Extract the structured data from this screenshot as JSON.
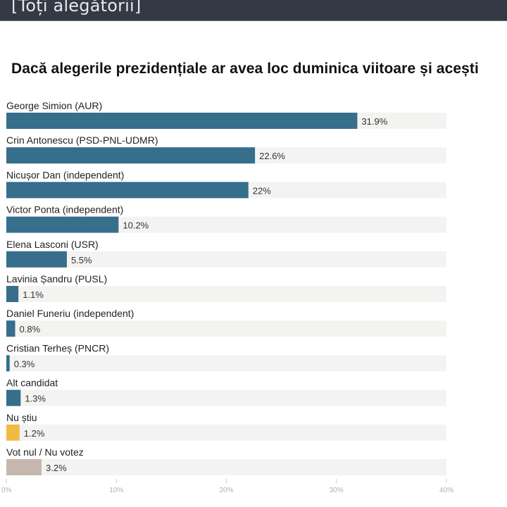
{
  "header": {
    "title": "[Toți alegătorii]"
  },
  "chart_data": {
    "type": "bar",
    "orientation": "horizontal",
    "title": "Dacă alegerile prezidențiale ar avea loc duminica viitoare și acești",
    "categories": [
      "George Simion (AUR)",
      "Crin Antonescu (PSD-PNL-UDMR)",
      "Nicușor Dan (independent)",
      "Victor Ponta (independent)",
      "Elena Lasconi (USR)",
      "Lavinia Șandru (PUSL)",
      "Daniel Funeriu (independent)",
      "Cristian Terheș (PNCR)",
      "Alt candidat",
      "Nu știu",
      "Vot nul / Nu votez"
    ],
    "values": [
      31.9,
      22.6,
      22,
      10.2,
      5.5,
      1.1,
      0.8,
      0.3,
      1.3,
      1.2,
      3.2
    ],
    "value_labels": [
      "31.9%",
      "22.6%",
      "22%",
      "10.2%",
      "5.5%",
      "1.1%",
      "0.8%",
      "0.3%",
      "1.3%",
      "1.2%",
      "3.2%"
    ],
    "colors": [
      "#366e8c",
      "#366e8c",
      "#366e8c",
      "#366e8c",
      "#366e8c",
      "#366e8c",
      "#366e8c",
      "#366e8c",
      "#366e8c",
      "#f4b942",
      "#c6b7ae"
    ],
    "track_color": "#f3f3f2",
    "xlim": [
      0,
      40
    ],
    "xticks": [
      0,
      10,
      20,
      30,
      40
    ],
    "xtick_labels": [
      "0%",
      "10%",
      "20%",
      "30%",
      "40%"
    ],
    "xlabel": "",
    "ylabel": "",
    "grid": false,
    "legend": "none"
  }
}
